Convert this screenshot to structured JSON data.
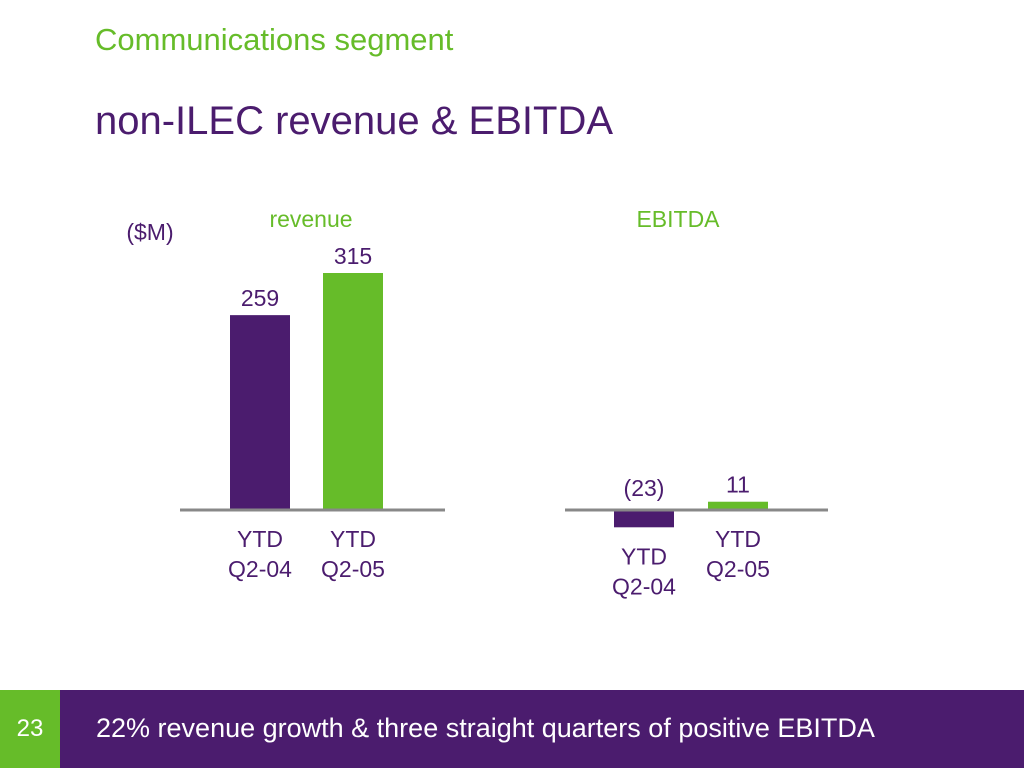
{
  "slide": {
    "kicker": "Communications segment",
    "title": "non-ILEC revenue & EBITDA",
    "units": "($M)",
    "page_number": "23",
    "footer": "22% revenue growth & three straight quarters of positive EBITDA"
  },
  "colors": {
    "purple": "#4b1c6e",
    "green": "#66bc29",
    "axis": "#888888"
  },
  "chart_data": [
    {
      "type": "bar",
      "title": "revenue",
      "units": "($M)",
      "categories": [
        "YTD Q2-04",
        "YTD Q2-05"
      ],
      "category_lines": [
        [
          "YTD",
          "Q2-04"
        ],
        [
          "YTD",
          "Q2-05"
        ]
      ],
      "values": [
        259,
        315
      ],
      "value_labels": [
        "259",
        "315"
      ],
      "bar_colors": [
        "#4b1c6e",
        "#66bc29"
      ],
      "ylim": [
        0,
        315
      ],
      "grid": false,
      "legend": "none"
    },
    {
      "type": "bar",
      "title": "EBITDA",
      "units": "($M)",
      "categories": [
        "YTD Q2-04",
        "YTD Q2-05"
      ],
      "category_lines": [
        [
          "YTD",
          "Q2-04"
        ],
        [
          "YTD",
          "Q2-05"
        ]
      ],
      "values": [
        -23,
        11
      ],
      "value_labels": [
        "(23)",
        "11"
      ],
      "bar_colors": [
        "#4b1c6e",
        "#66bc29"
      ],
      "ylim": [
        -23,
        315
      ],
      "grid": false,
      "legend": "none"
    }
  ]
}
